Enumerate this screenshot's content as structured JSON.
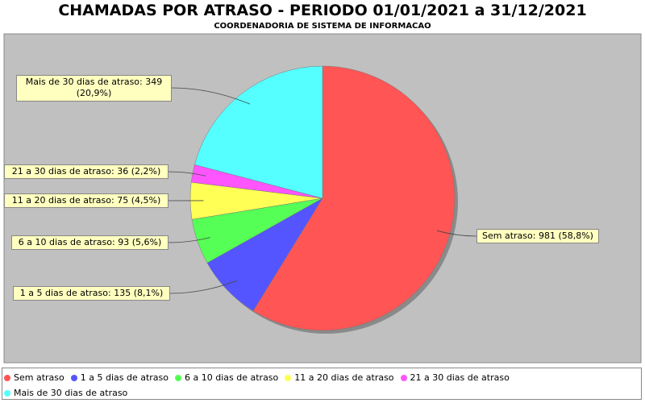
{
  "chart_data": {
    "type": "pie",
    "title": "CHAMADAS POR ATRASO - PERIODO 01/01/2021 a 31/12/2021",
    "subtitle": "COORDENADORIA DE SISTEMA DE INFORMACAO",
    "categories": [
      "Sem atraso",
      "1 a 5 dias de atraso",
      "6 a 10 dias de atraso",
      "11 a 20 dias de atraso",
      "21 a 30 dias de atraso",
      "Mais de 30 dias de atraso"
    ],
    "values": [
      981,
      135,
      93,
      75,
      36,
      349
    ],
    "value_labels": [
      "Sem atraso: 981 (58,8%)",
      "1 a 5 dias de atraso: 135 (8,1%)",
      "6 a 10 dias de atraso: 93 (5,6%)",
      "11 a 20 dias de atraso: 75 (4,5%)",
      "21 a 30 dias de atraso: 36 (2,2%)",
      "Mais de 30 dias de atraso: 349 (20,9%)"
    ],
    "colors": [
      "#ff5555",
      "#5555ff",
      "#55ff55",
      "#ffff55",
      "#ff55ff",
      "#55ffff"
    ]
  }
}
